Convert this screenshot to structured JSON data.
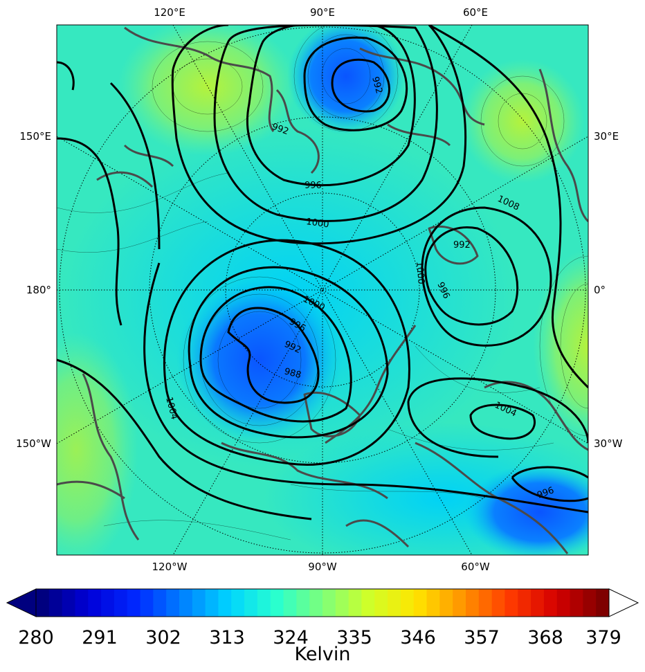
{
  "map": {
    "top_lon_labels": [
      "120°E",
      "90°E",
      "60°E"
    ],
    "bottom_lon_labels": [
      "120°W",
      "90°W",
      "60°W"
    ],
    "left_lon_labels": [
      "150°E",
      "180°",
      "150°W"
    ],
    "right_lon_labels": [
      "30°E",
      "0°",
      "30°W"
    ],
    "isobar_labels": [
      "992",
      "992",
      "996",
      "1000",
      "1008",
      "1000",
      "996",
      "992",
      "1000",
      "996",
      "992",
      "988",
      "1004",
      "1004",
      "996"
    ],
    "palette": {
      "background": "#2ee6c8",
      "low_core": "#0a64ff",
      "low_mid": "#00c8f8",
      "high_warm": "#a6f04a",
      "coast": "#4a4a4a",
      "isobar": "#000000"
    }
  },
  "colorbar": {
    "ticks": [
      "280",
      "291",
      "302",
      "313",
      "324",
      "335",
      "346",
      "357",
      "368",
      "379"
    ],
    "title": "Kelvin",
    "colors": [
      "#00007f",
      "#0000d8",
      "#0028ff",
      "#0080ff",
      "#00d4ff",
      "#28ffd0",
      "#7dff7a",
      "#d0ff28",
      "#ffe500",
      "#ff9400",
      "#ff3b00",
      "#d50000",
      "#7f0000"
    ],
    "min": 280,
    "max": 379
  }
}
